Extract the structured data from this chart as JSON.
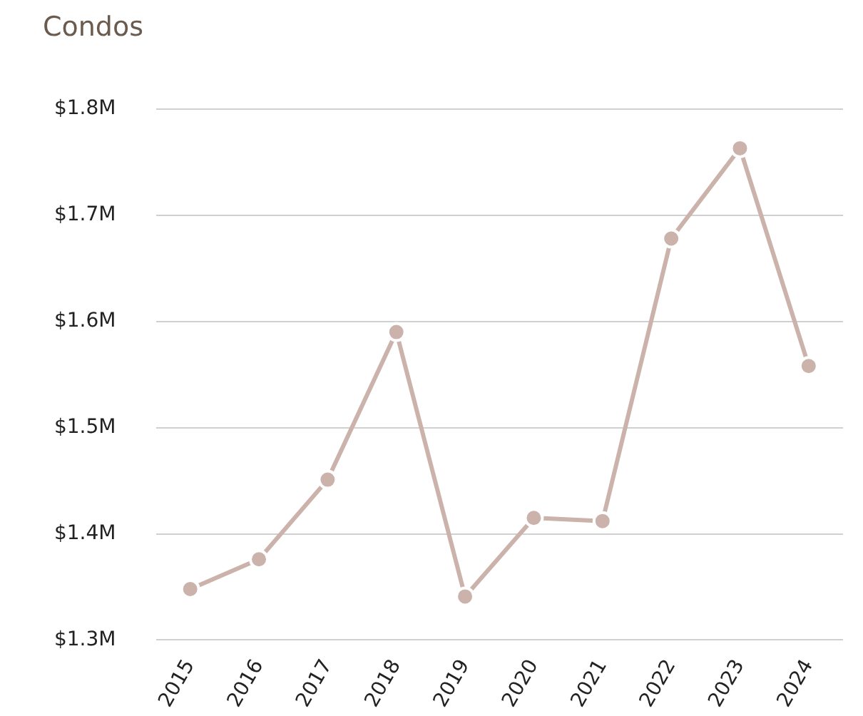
{
  "chart_data": {
    "type": "line",
    "title": "Condos",
    "categories": [
      "2015",
      "2016",
      "2017",
      "2018",
      "2019",
      "2020",
      "2021",
      "2022",
      "2023",
      "2024"
    ],
    "series": [
      {
        "color": "#cbb3ab",
        "values": [
          1.348,
          1.376,
          1.451,
          1.59,
          1.341,
          1.415,
          1.412,
          1.678,
          1.763,
          1.558
        ]
      }
    ],
    "ylim": [
      1.3,
      1.8
    ],
    "yticks": [
      {
        "value": 1.3,
        "label": "$1.3M"
      },
      {
        "value": 1.4,
        "label": "$1.4M"
      },
      {
        "value": 1.5,
        "label": "$1.5M"
      },
      {
        "value": 1.6,
        "label": "$1.6M"
      },
      {
        "value": 1.7,
        "label": "$1.7M"
      },
      {
        "value": 1.8,
        "label": "$1.8M"
      }
    ],
    "grid": "y",
    "legend": false,
    "marker": "circle",
    "line_style": "solid"
  }
}
